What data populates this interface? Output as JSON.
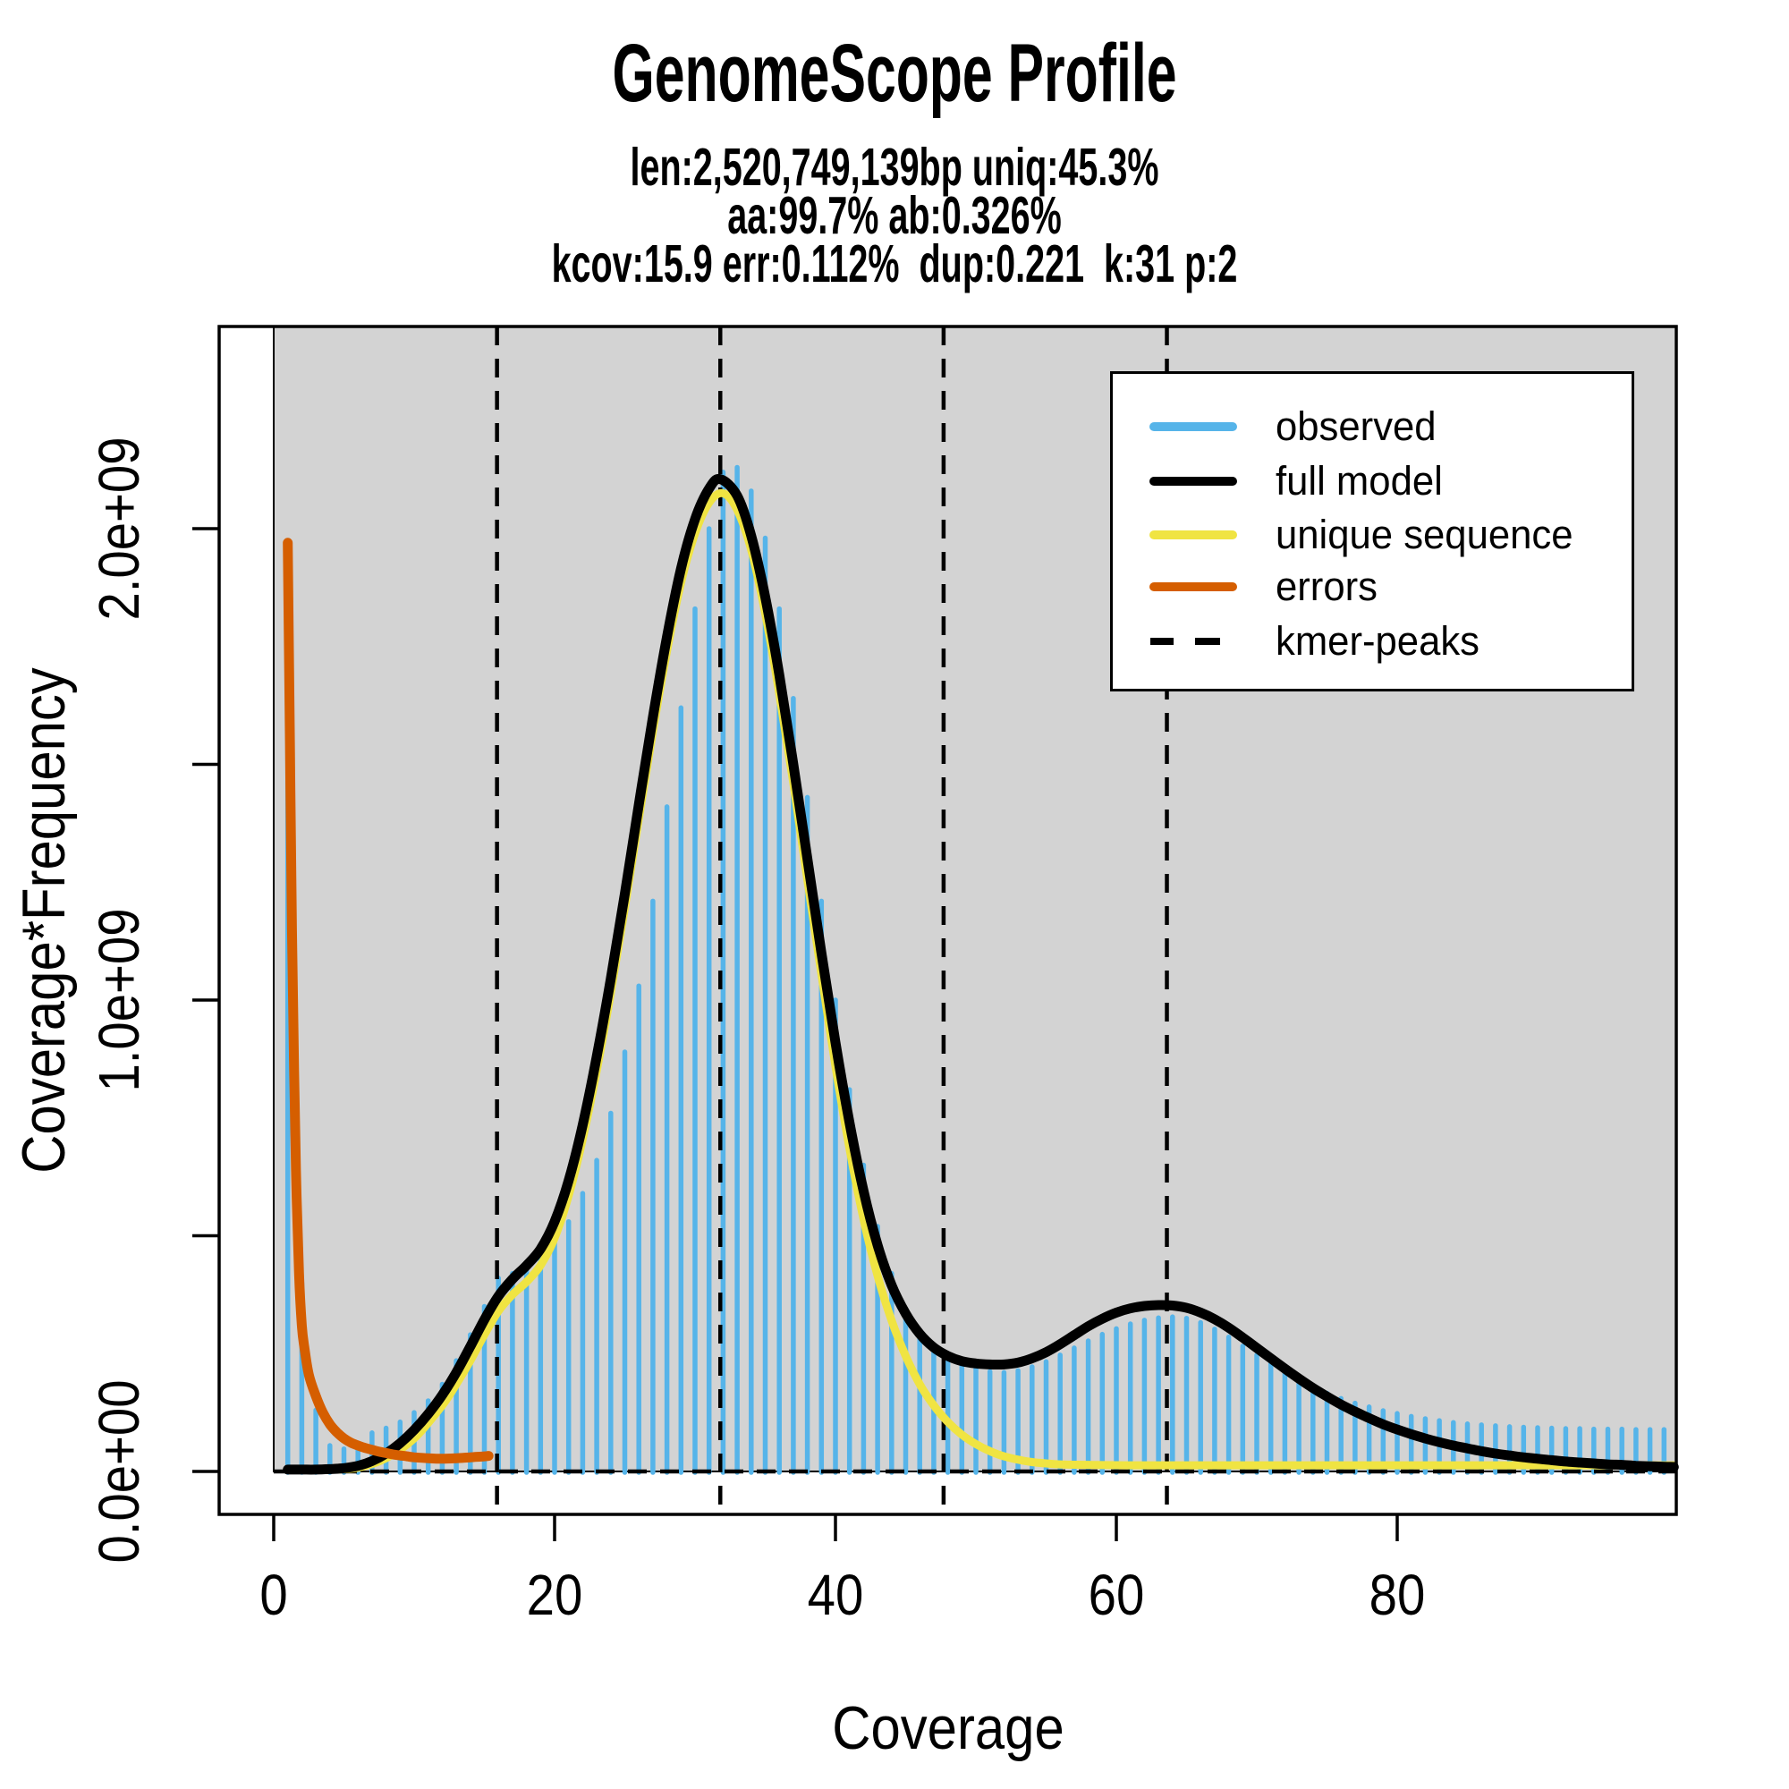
{
  "title": "GenomeScope Profile",
  "subtitle_lines": [
    "len:2,520,749,139bp uniq:45.3%",
    "aa:99.7% ab:0.326%",
    "kcov:15.9 err:0.112%  dup:0.221  k:31 p:2"
  ],
  "colors": {
    "observed": "#56B4E9",
    "full_model": "#000000",
    "unique_sequence": "#F0E442",
    "errors": "#D55E00",
    "kmer_peaks": "#000000",
    "plot_bg": "#D3D3D3",
    "page_bg": "#FFFFFF"
  },
  "legend": {
    "items": [
      {
        "label": "observed",
        "style": "line",
        "color": "#56B4E9"
      },
      {
        "label": "full model",
        "style": "line",
        "color": "#000000"
      },
      {
        "label": "unique sequence",
        "style": "line",
        "color": "#F0E442"
      },
      {
        "label": "errors",
        "style": "line",
        "color": "#D55E00"
      },
      {
        "label": "kmer-peaks",
        "style": "dashed",
        "color": "#000000"
      }
    ]
  },
  "chart_data": {
    "type": "bar",
    "title": "GenomeScope Profile",
    "xlabel": "Coverage",
    "ylabel": "Coverage*Frequency",
    "x_ticks": [
      0,
      20,
      40,
      60,
      80
    ],
    "y_ticks": [
      {
        "value": 0.0,
        "label": "0.0e+00"
      },
      {
        "value": 0.5,
        "label": ""
      },
      {
        "value": 1.0,
        "label": "1.0e+09"
      },
      {
        "value": 1.5,
        "label": ""
      },
      {
        "value": 2.0,
        "label": "2.0e+09"
      }
    ],
    "xlim": [
      0,
      99.7
    ],
    "ylim_1e9": [
      0,
      2.43
    ],
    "y_unit": 1000000000,
    "grid": false,
    "legend_position": "top-right",
    "kmer_peaks": [
      15.9,
      31.8,
      47.7,
      63.6
    ],
    "observed": {
      "start_coverage": 1,
      "values_1e9": [
        1.96,
        0.4,
        0.13,
        0.055,
        0.048,
        0.058,
        0.082,
        0.092,
        0.105,
        0.125,
        0.15,
        0.185,
        0.235,
        0.29,
        0.35,
        0.41,
        0.42,
        0.44,
        0.46,
        0.49,
        0.53,
        0.59,
        0.66,
        0.76,
        0.89,
        1.03,
        1.21,
        1.41,
        1.62,
        1.83,
        2.0,
        2.12,
        2.13,
        2.08,
        1.98,
        1.83,
        1.64,
        1.43,
        1.21,
        1.0,
        0.81,
        0.65,
        0.52,
        0.42,
        0.345,
        0.295,
        0.262,
        0.242,
        0.228,
        0.218,
        0.212,
        0.21,
        0.214,
        0.222,
        0.233,
        0.247,
        0.262,
        0.277,
        0.291,
        0.303,
        0.313,
        0.321,
        0.326,
        0.328,
        0.325,
        0.316,
        0.302,
        0.285,
        0.266,
        0.247,
        0.228,
        0.21,
        0.194,
        0.179,
        0.166,
        0.155,
        0.145,
        0.137,
        0.129,
        0.123,
        0.117,
        0.112,
        0.108,
        0.104,
        0.101,
        0.099,
        0.097,
        0.095,
        0.094,
        0.093,
        0.092,
        0.091,
        0.091,
        0.09,
        0.09,
        0.09,
        0.089,
        0.089,
        0.089
      ]
    },
    "full_model_points_1e9": [
      [
        1,
        0.004
      ],
      [
        2,
        0.004
      ],
      [
        3,
        0.004
      ],
      [
        4,
        0.005
      ],
      [
        5,
        0.007
      ],
      [
        6,
        0.012
      ],
      [
        7,
        0.022
      ],
      [
        8,
        0.038
      ],
      [
        9,
        0.06
      ],
      [
        10,
        0.088
      ],
      [
        11,
        0.122
      ],
      [
        12,
        0.162
      ],
      [
        13,
        0.21
      ],
      [
        14,
        0.265
      ],
      [
        15,
        0.322
      ],
      [
        16,
        0.372
      ],
      [
        17,
        0.408
      ],
      [
        18,
        0.437
      ],
      [
        19,
        0.472
      ],
      [
        20,
        0.53
      ],
      [
        21,
        0.617
      ],
      [
        22,
        0.735
      ],
      [
        23,
        0.88
      ],
      [
        24,
        1.045
      ],
      [
        25,
        1.225
      ],
      [
        26,
        1.415
      ],
      [
        27,
        1.6
      ],
      [
        28,
        1.77
      ],
      [
        29,
        1.915
      ],
      [
        30,
        2.02
      ],
      [
        31,
        2.085
      ],
      [
        31.8,
        2.105
      ],
      [
        33,
        2.07
      ],
      [
        34,
        1.985
      ],
      [
        35,
        1.855
      ],
      [
        36,
        1.69
      ],
      [
        37,
        1.5
      ],
      [
        38,
        1.3
      ],
      [
        39,
        1.1
      ],
      [
        40,
        0.91
      ],
      [
        41,
        0.74
      ],
      [
        42,
        0.595
      ],
      [
        43,
        0.48
      ],
      [
        44,
        0.395
      ],
      [
        45,
        0.335
      ],
      [
        46,
        0.292
      ],
      [
        47,
        0.263
      ],
      [
        48,
        0.245
      ],
      [
        49,
        0.234
      ],
      [
        50,
        0.229
      ],
      [
        51,
        0.227
      ],
      [
        52,
        0.227
      ],
      [
        53,
        0.231
      ],
      [
        54,
        0.24
      ],
      [
        55,
        0.253
      ],
      [
        56,
        0.27
      ],
      [
        57,
        0.289
      ],
      [
        58,
        0.308
      ],
      [
        59,
        0.324
      ],
      [
        60,
        0.337
      ],
      [
        61,
        0.346
      ],
      [
        62,
        0.351
      ],
      [
        63,
        0.353
      ],
      [
        64,
        0.352
      ],
      [
        65,
        0.347
      ],
      [
        66,
        0.337
      ],
      [
        67,
        0.323
      ],
      [
        68,
        0.305
      ],
      [
        69,
        0.284
      ],
      [
        70,
        0.262
      ],
      [
        71,
        0.24
      ],
      [
        72,
        0.218
      ],
      [
        73,
        0.197
      ],
      [
        74,
        0.177
      ],
      [
        75,
        0.159
      ],
      [
        76,
        0.142
      ],
      [
        77,
        0.127
      ],
      [
        78,
        0.113
      ],
      [
        79,
        0.1
      ],
      [
        80,
        0.089
      ],
      [
        81,
        0.079
      ],
      [
        82,
        0.07
      ],
      [
        83,
        0.062
      ],
      [
        84,
        0.055
      ],
      [
        85,
        0.049
      ],
      [
        86,
        0.043
      ],
      [
        87,
        0.038
      ],
      [
        88,
        0.034
      ],
      [
        89,
        0.03
      ],
      [
        90,
        0.027
      ],
      [
        91,
        0.024
      ],
      [
        92,
        0.021
      ],
      [
        93,
        0.019
      ],
      [
        94,
        0.017
      ],
      [
        95,
        0.015
      ],
      [
        96,
        0.014
      ],
      [
        97,
        0.012
      ],
      [
        98,
        0.011
      ],
      [
        99,
        0.01
      ],
      [
        99.7,
        0.0095
      ]
    ],
    "unique_sequence_points_1e9": [
      [
        1,
        0.003
      ],
      [
        4,
        0.004
      ],
      [
        6,
        0.008
      ],
      [
        8,
        0.028
      ],
      [
        10,
        0.07
      ],
      [
        12,
        0.14
      ],
      [
        13,
        0.185
      ],
      [
        14,
        0.235
      ],
      [
        15,
        0.29
      ],
      [
        16,
        0.34
      ],
      [
        17,
        0.375
      ],
      [
        18,
        0.402
      ],
      [
        19,
        0.437
      ],
      [
        20,
        0.495
      ],
      [
        21,
        0.585
      ],
      [
        22,
        0.705
      ],
      [
        23,
        0.85
      ],
      [
        24,
        1.015
      ],
      [
        25,
        1.195
      ],
      [
        26,
        1.385
      ],
      [
        27,
        1.57
      ],
      [
        28,
        1.74
      ],
      [
        29,
        1.885
      ],
      [
        30,
        1.99
      ],
      [
        31,
        2.055
      ],
      [
        32,
        2.075
      ],
      [
        33,
        2.04
      ],
      [
        34,
        1.955
      ],
      [
        35,
        1.82
      ],
      [
        36,
        1.65
      ],
      [
        37,
        1.46
      ],
      [
        38,
        1.255
      ],
      [
        39,
        1.055
      ],
      [
        40,
        0.86
      ],
      [
        41,
        0.685
      ],
      [
        42,
        0.535
      ],
      [
        43,
        0.415
      ],
      [
        44,
        0.32
      ],
      [
        45,
        0.245
      ],
      [
        46,
        0.185
      ],
      [
        47,
        0.14
      ],
      [
        48,
        0.105
      ],
      [
        49,
        0.078
      ],
      [
        50,
        0.058
      ],
      [
        51,
        0.043
      ],
      [
        52,
        0.032
      ],
      [
        53,
        0.025
      ],
      [
        54,
        0.02
      ],
      [
        55,
        0.017
      ],
      [
        56,
        0.015
      ],
      [
        58,
        0.014
      ],
      [
        62,
        0.013
      ],
      [
        70,
        0.013
      ],
      [
        80,
        0.013
      ],
      [
        90,
        0.013
      ],
      [
        99.7,
        0.013
      ]
    ],
    "errors_points_1e9": [
      [
        1,
        1.97
      ],
      [
        1.15,
        1.55
      ],
      [
        1.3,
        1.15
      ],
      [
        1.45,
        0.85
      ],
      [
        1.6,
        0.62
      ],
      [
        1.8,
        0.42
      ],
      [
        2,
        0.31
      ],
      [
        2.2,
        0.26
      ],
      [
        2.5,
        0.205
      ],
      [
        3,
        0.16
      ],
      [
        3.5,
        0.125
      ],
      [
        4,
        0.1
      ],
      [
        4.5,
        0.083
      ],
      [
        5,
        0.07
      ],
      [
        5.5,
        0.061
      ],
      [
        6,
        0.055
      ],
      [
        6.5,
        0.05
      ],
      [
        7,
        0.046
      ],
      [
        7.5,
        0.042
      ],
      [
        8,
        0.039
      ],
      [
        8.5,
        0.036
      ],
      [
        9,
        0.034
      ],
      [
        9.5,
        0.032
      ],
      [
        10,
        0.03
      ],
      [
        11,
        0.028
      ],
      [
        12,
        0.027
      ],
      [
        13,
        0.028
      ],
      [
        14,
        0.03
      ],
      [
        15,
        0.032
      ],
      [
        15.3,
        0.033
      ]
    ]
  }
}
